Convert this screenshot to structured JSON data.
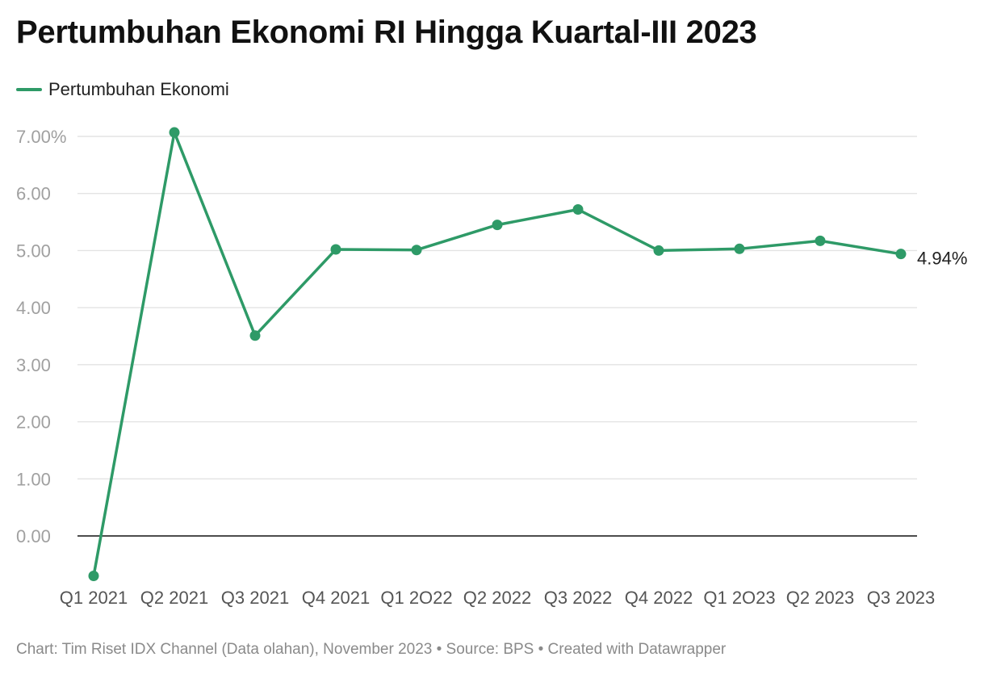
{
  "chart_data": {
    "type": "line",
    "title": "Pertumbuhan Ekonomi RI Hingga Kuartal-III 2023",
    "xlabel": "",
    "ylabel": "",
    "categories": [
      "Q1 2021",
      "Q2 2021",
      "Q3 2021",
      "Q4 2021",
      "Q1 2O22",
      "Q2 2022",
      "Q3 2022",
      "Q4 2022",
      "Q1 2O23",
      "Q2 2023",
      "Q3 2023"
    ],
    "series": [
      {
        "name": "Pertumbuhan Ekonomi",
        "values": [
          -0.7,
          7.07,
          3.51,
          5.02,
          5.01,
          5.45,
          5.72,
          5.0,
          5.03,
          5.17,
          4.94
        ],
        "color": "#2e9a67"
      }
    ],
    "ylim": [
      -0.8,
      7.0
    ],
    "yticks": [
      0,
      1,
      2,
      3,
      4,
      5,
      6,
      7
    ],
    "ytick_labels": [
      "0.00",
      "1.00",
      "2.00",
      "3.00",
      "4.00",
      "5.00",
      "6.00",
      "7.00%"
    ],
    "grid": true,
    "legend_position": "top-left",
    "end_label": "4.94%",
    "footer": "Chart: Tim Riset IDX Channel (Data olahan), November 2023 • Source: BPS • Created with Datawrapper",
    "colors": {
      "line": "#2e9a67",
      "grid": "#e3e3e3",
      "zero_line": "#111111",
      "tick_text": "#a0a0a0",
      "x_tick_text": "#555555"
    }
  }
}
